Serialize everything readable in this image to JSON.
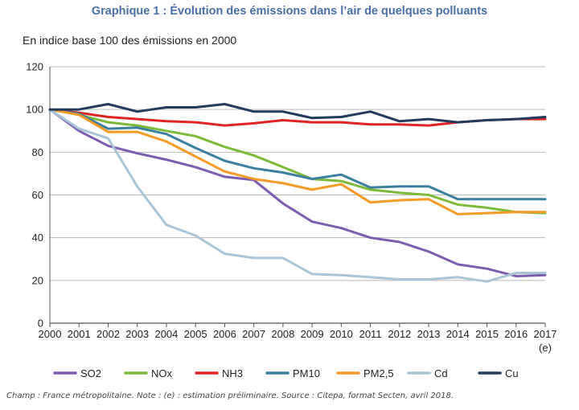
{
  "title": "Graphique 1 : Évolution des émissions dans l’air de quelques polluants",
  "subtitle": "En indice base 100 des émissions en 2000",
  "footnote": "Champ : France métropolitaine. Note : (e) : estimation préliminaire. Source : Citepa, format Secten, avril 2018.",
  "chart_data": {
    "type": "line",
    "x": [
      "2000",
      "2001",
      "2002",
      "2003",
      "2004",
      "2005",
      "2006",
      "2007",
      "2008",
      "2009",
      "2010",
      "2011",
      "2012",
      "2013",
      "2014",
      "2015",
      "2016",
      "2017"
    ],
    "x_last_note": "(e)",
    "ylim": [
      0,
      120
    ],
    "yticks": [
      0,
      20,
      40,
      60,
      80,
      100,
      120
    ],
    "grid": true,
    "legend_position": "bottom",
    "series": [
      {
        "name": "SO2",
        "color": "#7b5cb0",
        "values": [
          100,
          90,
          83,
          79.5,
          76.5,
          73,
          68.5,
          67,
          56,
          47.5,
          44.5,
          40,
          38,
          33.5,
          27.5,
          25.5,
          22,
          22.5
        ]
      },
      {
        "name": "NOx",
        "color": "#7cba3a",
        "values": [
          100,
          97.5,
          94,
          92.5,
          90,
          87.5,
          82.5,
          78.5,
          73,
          67.5,
          66.5,
          62.5,
          61,
          60,
          55.5,
          54,
          52,
          51.5
        ]
      },
      {
        "name": "NH3",
        "color": "#e02424",
        "values": [
          100,
          98.5,
          96.5,
          95.5,
          94.5,
          94,
          92.5,
          93.5,
          95,
          94,
          94,
          93,
          93,
          92.5,
          94,
          95,
          95.5,
          95.5
        ]
      },
      {
        "name": "PM10",
        "color": "#3a7fa0",
        "values": [
          100,
          98,
          91,
          91.5,
          88.5,
          82,
          76,
          72.5,
          70.5,
          67.5,
          69.5,
          63.5,
          64,
          64,
          58,
          58,
          58,
          58
        ]
      },
      {
        "name": "PM2,5",
        "color": "#f59a25",
        "values": [
          100,
          97.5,
          89.5,
          89.5,
          85,
          78,
          71,
          67.5,
          65.5,
          62.5,
          65,
          56.5,
          57.5,
          58,
          51,
          51.5,
          52,
          52
        ]
      },
      {
        "name": "Cd",
        "color": "#a9c4d6",
        "values": [
          100,
          91,
          86.5,
          64,
          46,
          41,
          32.5,
          30.5,
          30.5,
          23,
          22.5,
          21.5,
          20.5,
          20.5,
          21.5,
          19.5,
          23.5,
          23.5
        ]
      },
      {
        "name": "Cu",
        "color": "#233b5e",
        "values": [
          100,
          100,
          102.5,
          99,
          101,
          101,
          102.5,
          99,
          99,
          96,
          96.5,
          99,
          94.5,
          95.5,
          94,
          95,
          95.5,
          96.5
        ]
      }
    ]
  }
}
